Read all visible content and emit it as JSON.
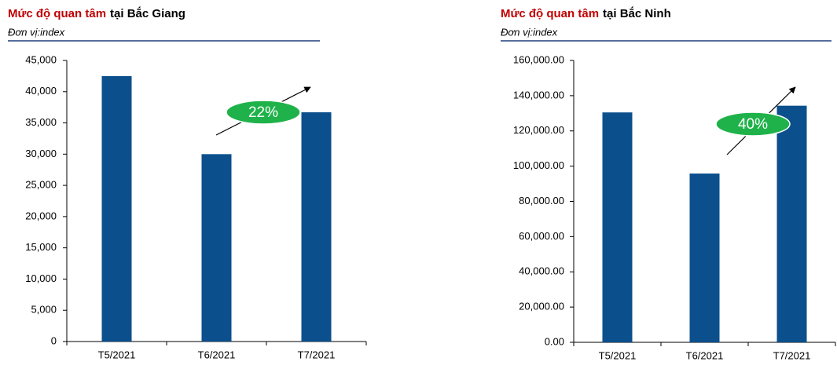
{
  "chart_data": [
    {
      "type": "bar",
      "title": [
        "Mức độ quan tâm",
        "tại Bắc Giang"
      ],
      "subtitle": "Đơn vị:index",
      "categories": [
        "T5/2021",
        "T6/2021",
        "T7/2021"
      ],
      "values": [
        42500,
        30000,
        36700
      ],
      "color": "#0b4f8c",
      "ylim": [
        0,
        45000
      ],
      "yticks": [
        0,
        {
          "value": 5000,
          "label": "5,000"
        },
        {
          "value": 10000,
          "label": "10,000"
        },
        {
          "value": 15000,
          "label": "15,000"
        },
        {
          "value": 20000,
          "label": "20,000"
        },
        {
          "value": 25000,
          "label": "25,000"
        },
        {
          "value": 30000,
          "label": "30,000"
        },
        {
          "value": 35000,
          "label": "35,000"
        },
        {
          "value": 40000,
          "label": "40,000"
        },
        {
          "value": 45000,
          "label": "45,000"
        }
      ],
      "annotation": "22%"
    },
    {
      "type": "bar",
      "title": [
        "Mức độ quan tâm",
        "tại Bắc Ninh"
      ],
      "subtitle": "Đơn vị:index",
      "categories": [
        "T5/2021",
        "T6/2021",
        "T7/2021"
      ],
      "values": [
        130500,
        95800,
        134300
      ],
      "color": "#0b4f8c",
      "ylim": [
        0,
        160000
      ],
      "yticks": [
        {
          "value": 0,
          "label": "0.00"
        },
        {
          "value": 20000,
          "label": "20,000.00"
        },
        {
          "value": 40000,
          "label": "40,000.00"
        },
        {
          "value": 60000,
          "label": "60,000.00"
        },
        {
          "value": 80000,
          "label": "80,000.00"
        },
        {
          "value": 100000,
          "label": "100,000.00"
        },
        {
          "value": 120000,
          "label": "120,000.00"
        },
        {
          "value": 140000,
          "label": "140,000.00"
        },
        {
          "value": 160000,
          "label": "160,000.00"
        }
      ],
      "annotation": "40%"
    }
  ]
}
